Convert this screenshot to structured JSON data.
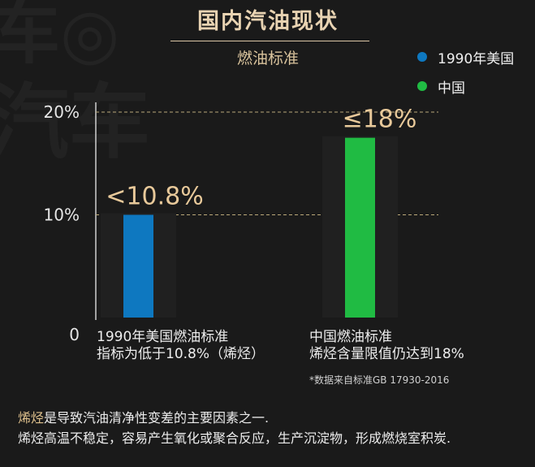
{
  "header": {
    "title": "国内汽油现状",
    "subtitle": "燃油标准"
  },
  "chart_data": {
    "type": "bar",
    "title": "国内汽油现状",
    "subtitle": "燃油标准",
    "categories": [
      "1990年美国燃油标准\n指标为低于10.8%（烯烃）",
      "中国燃油标准\n烯烃含量限值仍达到18%"
    ],
    "series": [
      {
        "name": "1990年美国",
        "values": [
          10.0,
          null
        ],
        "color": "#0e78c0"
      },
      {
        "name": "中国",
        "values": [
          null,
          17.5
        ],
        "color": "#20bb43"
      }
    ],
    "data_labels": [
      "<10.8%",
      "≤18%"
    ],
    "y_ticks": [
      {
        "value": 0,
        "label": "0"
      },
      {
        "value": 10,
        "label": "10%"
      },
      {
        "value": 20,
        "label": "20%"
      }
    ],
    "ylim": [
      0,
      21
    ],
    "grid": "dashed horizontal at 10% and 20%",
    "legend_position": "top-right",
    "annotation": "*数据来自标准GB 17930-2016"
  },
  "category_labels": [
    {
      "line1": "1990年美国燃油标准",
      "line2": "指标为低于10.8%（烯烃）"
    },
    {
      "line1": "中国燃油标准",
      "line2": "烯烃含量限值仍达到18%"
    }
  ],
  "legend": [
    {
      "label": "1990年美国",
      "color": "#0e78c0"
    },
    {
      "label": "中国",
      "color": "#20bb43"
    }
  ],
  "footer": {
    "highlight": "烯烃",
    "line1_rest": "是导致汽油清净性变差的主要因素之一.",
    "line2": "烯烃高温不稳定，容易产生氧化或聚合反应，生产沉淀物，形成燃烧室积炭."
  }
}
